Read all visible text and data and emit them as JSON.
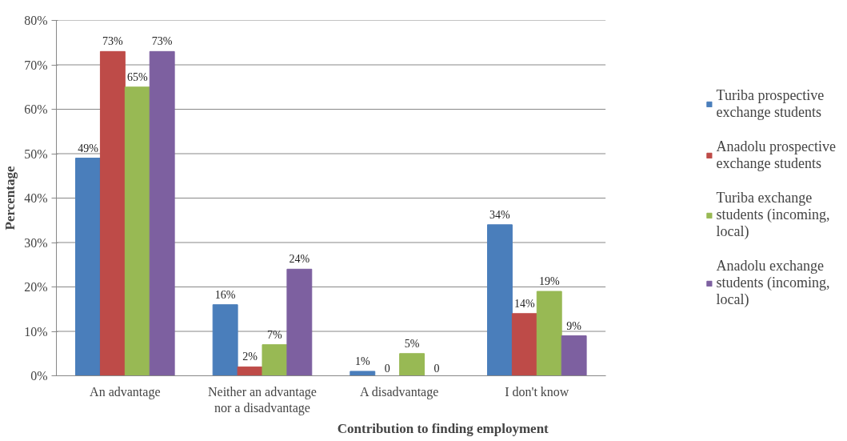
{
  "chart_data": {
    "type": "bar",
    "xlabel": "Contribution  to finding  employment",
    "ylabel": "Percentage",
    "categories": [
      "An advantage",
      "Neither an advantage nor a disadvantage",
      "A disadvantage",
      "I don't know"
    ],
    "series": [
      {
        "name": "Turiba prospective exchange students",
        "color": "#4a7ebb",
        "values": [
          49,
          16,
          1,
          34
        ],
        "value_labels": [
          "49%",
          "16%",
          "1%",
          "34%"
        ]
      },
      {
        "name": "Anadolu prospective exchange students",
        "color": "#be4b48",
        "values": [
          73,
          2,
          0,
          14
        ],
        "value_labels": [
          "73%",
          "2%",
          "0",
          "14%"
        ]
      },
      {
        "name": "Turiba exchange students (incoming, local)",
        "color": "#98b954",
        "values": [
          65,
          7,
          5,
          19
        ],
        "value_labels": [
          "65%",
          "7%",
          "5%",
          "19%"
        ]
      },
      {
        "name": "Anadolu exchange students (incoming, local)",
        "color": "#7d60a0",
        "values": [
          73,
          24,
          0,
          9
        ],
        "value_labels": [
          "73%",
          "24%",
          "0",
          "9%"
        ]
      }
    ],
    "ylim": [
      0,
      80
    ],
    "yticks": [
      {
        "value": 0,
        "label": "0%"
      },
      {
        "value": 10,
        "label": "10%"
      },
      {
        "value": 20,
        "label": "20%"
      },
      {
        "value": 30,
        "label": "30%"
      },
      {
        "value": 40,
        "label": "40%"
      },
      {
        "value": 50,
        "label": "50%"
      },
      {
        "value": 60,
        "label": "60%"
      },
      {
        "value": 70,
        "label": "70%"
      },
      {
        "value": 80,
        "label": "80%"
      }
    ],
    "grid": "y",
    "legend": "right"
  }
}
